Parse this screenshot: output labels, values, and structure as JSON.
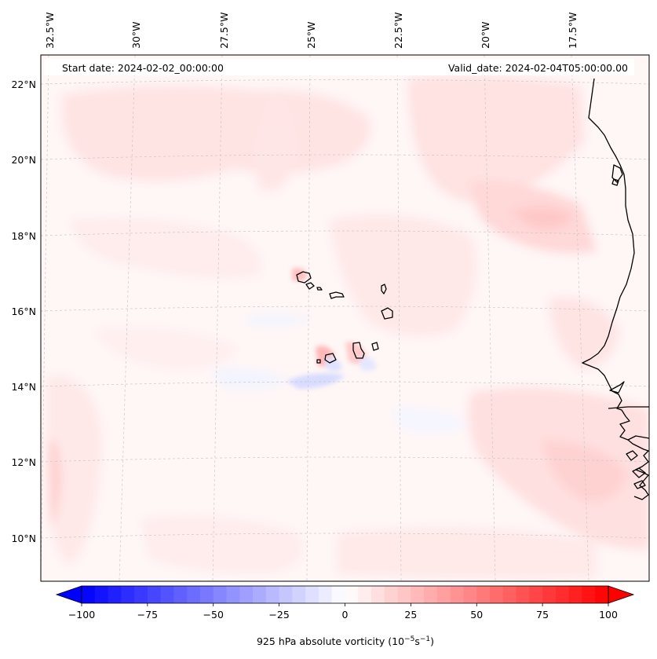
{
  "header": {
    "start_date_label": "Start date: 2024-02-02_00:00:00",
    "valid_date_label": "Valid_date: 2024-02-04T05:00:00.00"
  },
  "map": {
    "lon_ticks": [
      "32.5°W",
      "30°W",
      "27.5°W",
      "25°W",
      "22.5°W",
      "20°W",
      "17.5°W"
    ],
    "lat_ticks": [
      "22°N",
      "20°N",
      "18°N",
      "16°N",
      "14°N",
      "12°N",
      "10°N"
    ],
    "gridlines": true,
    "colors": {
      "frame": "#000000",
      "gridline": "#c8c8c8",
      "coastline": "#000000",
      "ocean_background": "#fff6f6"
    }
  },
  "colorbar": {
    "ticks": [
      "−100",
      "−75",
      "−50",
      "−25",
      "0",
      "25",
      "50",
      "75",
      "100"
    ],
    "min": -100,
    "max": 100,
    "levels": 40,
    "extend": "both",
    "colormap": "bwr",
    "label_main": "925 hPa absolute vorticity (10",
    "label_exp1": "−5",
    "label_mid": "s",
    "label_exp2": "−1",
    "label_end": ")"
  }
}
